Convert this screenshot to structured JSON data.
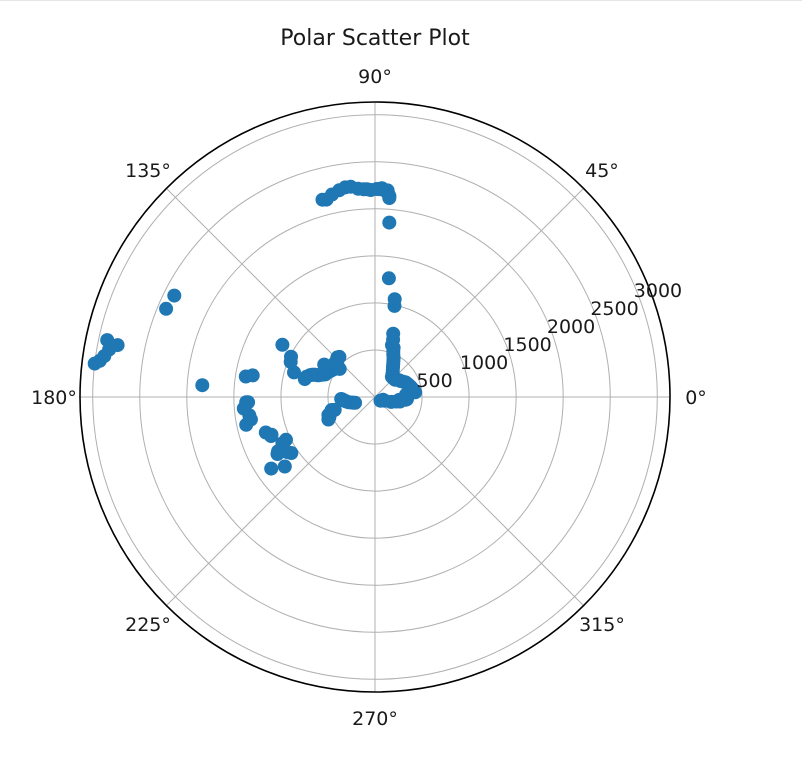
{
  "chart_data": {
    "type": "scatter",
    "projection": "polar",
    "title": "Polar Scatter Plot",
    "theta_unit": "degrees",
    "theta_ticks": [
      "0°",
      "45°",
      "90°",
      "135°",
      "180°",
      "225°",
      "270°",
      "315°"
    ],
    "r_ticks": [
      "500",
      "1000",
      "1500",
      "2000",
      "2500",
      "3000"
    ],
    "r_tick_values": [
      500,
      1000,
      1500,
      2000,
      2500,
      3000
    ],
    "rlim": [
      0,
      3135
    ],
    "grid": true,
    "marker_color": "#1f77b4",
    "points": [
      [
        103.8,
        2160
      ],
      [
        104.9,
        2170
      ],
      [
        102.0,
        2200
      ],
      [
        99.8,
        2230
      ],
      [
        98.1,
        2250
      ],
      [
        96.6,
        2250
      ],
      [
        94.6,
        2220
      ],
      [
        93.1,
        2210
      ],
      [
        92.2,
        2210
      ],
      [
        91.2,
        2200
      ],
      [
        89.5,
        2210
      ],
      [
        88.8,
        2210
      ],
      [
        88.1,
        2220
      ],
      [
        87.4,
        2200
      ],
      [
        86.5,
        2200
      ],
      [
        86.2,
        2160
      ],
      [
        85.9,
        2140
      ],
      [
        85.9,
        2120
      ],
      [
        85.3,
        1860
      ],
      [
        83.3,
        1270
      ],
      [
        78.6,
        1060
      ],
      [
        77.9,
        990
      ],
      [
        74.0,
        700
      ],
      [
        72.5,
        640
      ],
      [
        71.9,
        580
      ],
      [
        69.3,
        560
      ],
      [
        68.0,
        520
      ],
      [
        66.6,
        490
      ],
      [
        64.6,
        460
      ],
      [
        63.0,
        430
      ],
      [
        61.1,
        400
      ],
      [
        58.8,
        370
      ],
      [
        56.3,
        340
      ],
      [
        53.1,
        310
      ],
      [
        50.2,
        280
      ],
      [
        47.7,
        280
      ],
      [
        45.5,
        280
      ],
      [
        43.6,
        290
      ],
      [
        40.9,
        280
      ],
      [
        37.8,
        300
      ],
      [
        35.2,
        310
      ],
      [
        32.2,
        320
      ],
      [
        28.5,
        340
      ],
      [
        25.6,
        360
      ],
      [
        22.6,
        370
      ],
      [
        19.6,
        380
      ],
      [
        17.1,
        390
      ],
      [
        14.3,
        400
      ],
      [
        11.6,
        410
      ],
      [
        8.5,
        420
      ],
      [
        6.6,
        430
      ],
      [
        4.2,
        330
      ],
      [
        2.0,
        330
      ],
      [
        -1.7,
        340
      ],
      [
        -3.9,
        340
      ],
      [
        -4.9,
        330
      ],
      [
        -6.8,
        260
      ],
      [
        -19.0,
        90
      ],
      [
        -20.8,
        110
      ],
      [
        -16.8,
        180
      ],
      [
        -12.0,
        230
      ],
      [
        -10.1,
        270
      ],
      [
        -23.5,
        90
      ],
      [
        -33.7,
        70
      ],
      [
        -163.8,
        220
      ],
      [
        -165.4,
        240
      ],
      [
        -167.1,
        260
      ],
      [
        -169.1,
        290
      ],
      [
        -171.3,
        310
      ],
      [
        -172.4,
        320
      ],
      [
        -173.6,
        330
      ],
      [
        -174.7,
        340
      ],
      [
        -175.9,
        350
      ],
      [
        -176.7,
        360
      ],
      [
        -162.3,
        450
      ],
      [
        -163.3,
        480
      ],
      [
        -159.8,
        510
      ],
      [
        -159.0,
        530
      ],
      [
        -156.0,
        530
      ],
      [
        -154.2,
        550
      ],
      [
        131.6,
        570
      ],
      [
        133.5,
        580
      ],
      [
        136.4,
        560
      ],
      [
        138.4,
        560
      ],
      [
        140.0,
        520
      ],
      [
        149.9,
        550
      ],
      [
        148.2,
        540
      ],
      [
        146.4,
        530
      ],
      [
        144.2,
        540
      ],
      [
        143.0,
        530
      ],
      [
        153.2,
        570
      ],
      [
        154.0,
        590
      ],
      [
        155.5,
        580
      ],
      [
        156.6,
        600
      ],
      [
        157.6,
        620
      ],
      [
        158.8,
        640
      ],
      [
        159.2,
        650
      ],
      [
        159.6,
        680
      ],
      [
        160.0,
        690
      ],
      [
        160.6,
        710
      ],
      [
        161.5,
        730
      ],
      [
        163.6,
        760
      ],
      [
        165.7,
        770
      ],
      [
        147.5,
        640
      ],
      [
        141.5,
        480
      ],
      [
        163.1,
        900
      ],
      [
        157.4,
        970
      ],
      [
        154.4,
        990
      ],
      [
        150.6,
        1130
      ],
      [
        176.1,
        1840
      ],
      [
        171.0,
        1390
      ],
      [
        170.0,
        1320
      ],
      [
        -169.7,
        1340
      ],
      [
        -171.7,
        1350
      ],
      [
        -177.7,
        1370
      ],
      [
        -177.6,
        1350
      ],
      [
        -175.0,
        1400
      ],
      [
        -167.8,
        1400
      ],
      [
        -162.0,
        1220
      ],
      [
        -160.0,
        1170
      ],
      [
        -159.4,
        1180
      ],
      [
        -154.3,
        1050
      ],
      [
        -153.5,
        1100
      ],
      [
        -150.8,
        1180
      ],
      [
        -146.2,
        1070
      ],
      [
        -147.8,
        1100
      ],
      [
        -149.7,
        1200
      ],
      [
        -145.4,
        1340
      ],
      [
        -142.4,
        1210
      ],
      [
        157.1,
        2410
      ],
      [
        153.2,
        2390
      ],
      [
        169.9,
        2870
      ],
      [
        168.6,
        2790
      ],
      [
        172.5,
        2950
      ],
      [
        171.4,
        2910
      ],
      [
        173.2,
        3000
      ],
      [
        168.0,
        2910
      ]
    ]
  }
}
